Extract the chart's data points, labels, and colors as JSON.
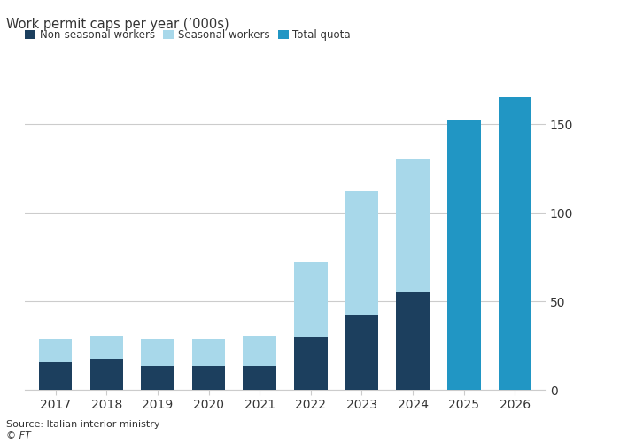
{
  "years": [
    2017,
    2018,
    2019,
    2020,
    2021,
    2022,
    2023,
    2024,
    2025,
    2026
  ],
  "non_seasonal": [
    15.5,
    17.5,
    13.5,
    13.5,
    13.5,
    30.0,
    42.0,
    55.0,
    0,
    0
  ],
  "seasonal": [
    13.0,
    13.0,
    15.0,
    15.0,
    17.0,
    42.0,
    70.0,
    75.0,
    0,
    0
  ],
  "total_quota": [
    0,
    0,
    0,
    0,
    0,
    0,
    0,
    0,
    152.0,
    165.0
  ],
  "color_non_seasonal": "#1c3f5e",
  "color_seasonal": "#a8d8ea",
  "color_total": "#2196c4",
  "title": "Work permit caps per year (’000s)",
  "legend_labels": [
    "Non-seasonal workers",
    "Seasonal workers",
    "Total quota"
  ],
  "ylim": [
    0,
    175
  ],
  "yticks": [
    0,
    50,
    100,
    150
  ],
  "source": "Source: Italian interior ministry",
  "ft_label": "© FT",
  "background_color": "#ffffff",
  "plot_bg": "#ffffff",
  "text_color": "#333333",
  "grid_color": "#cccccc",
  "bar_width": 0.65
}
